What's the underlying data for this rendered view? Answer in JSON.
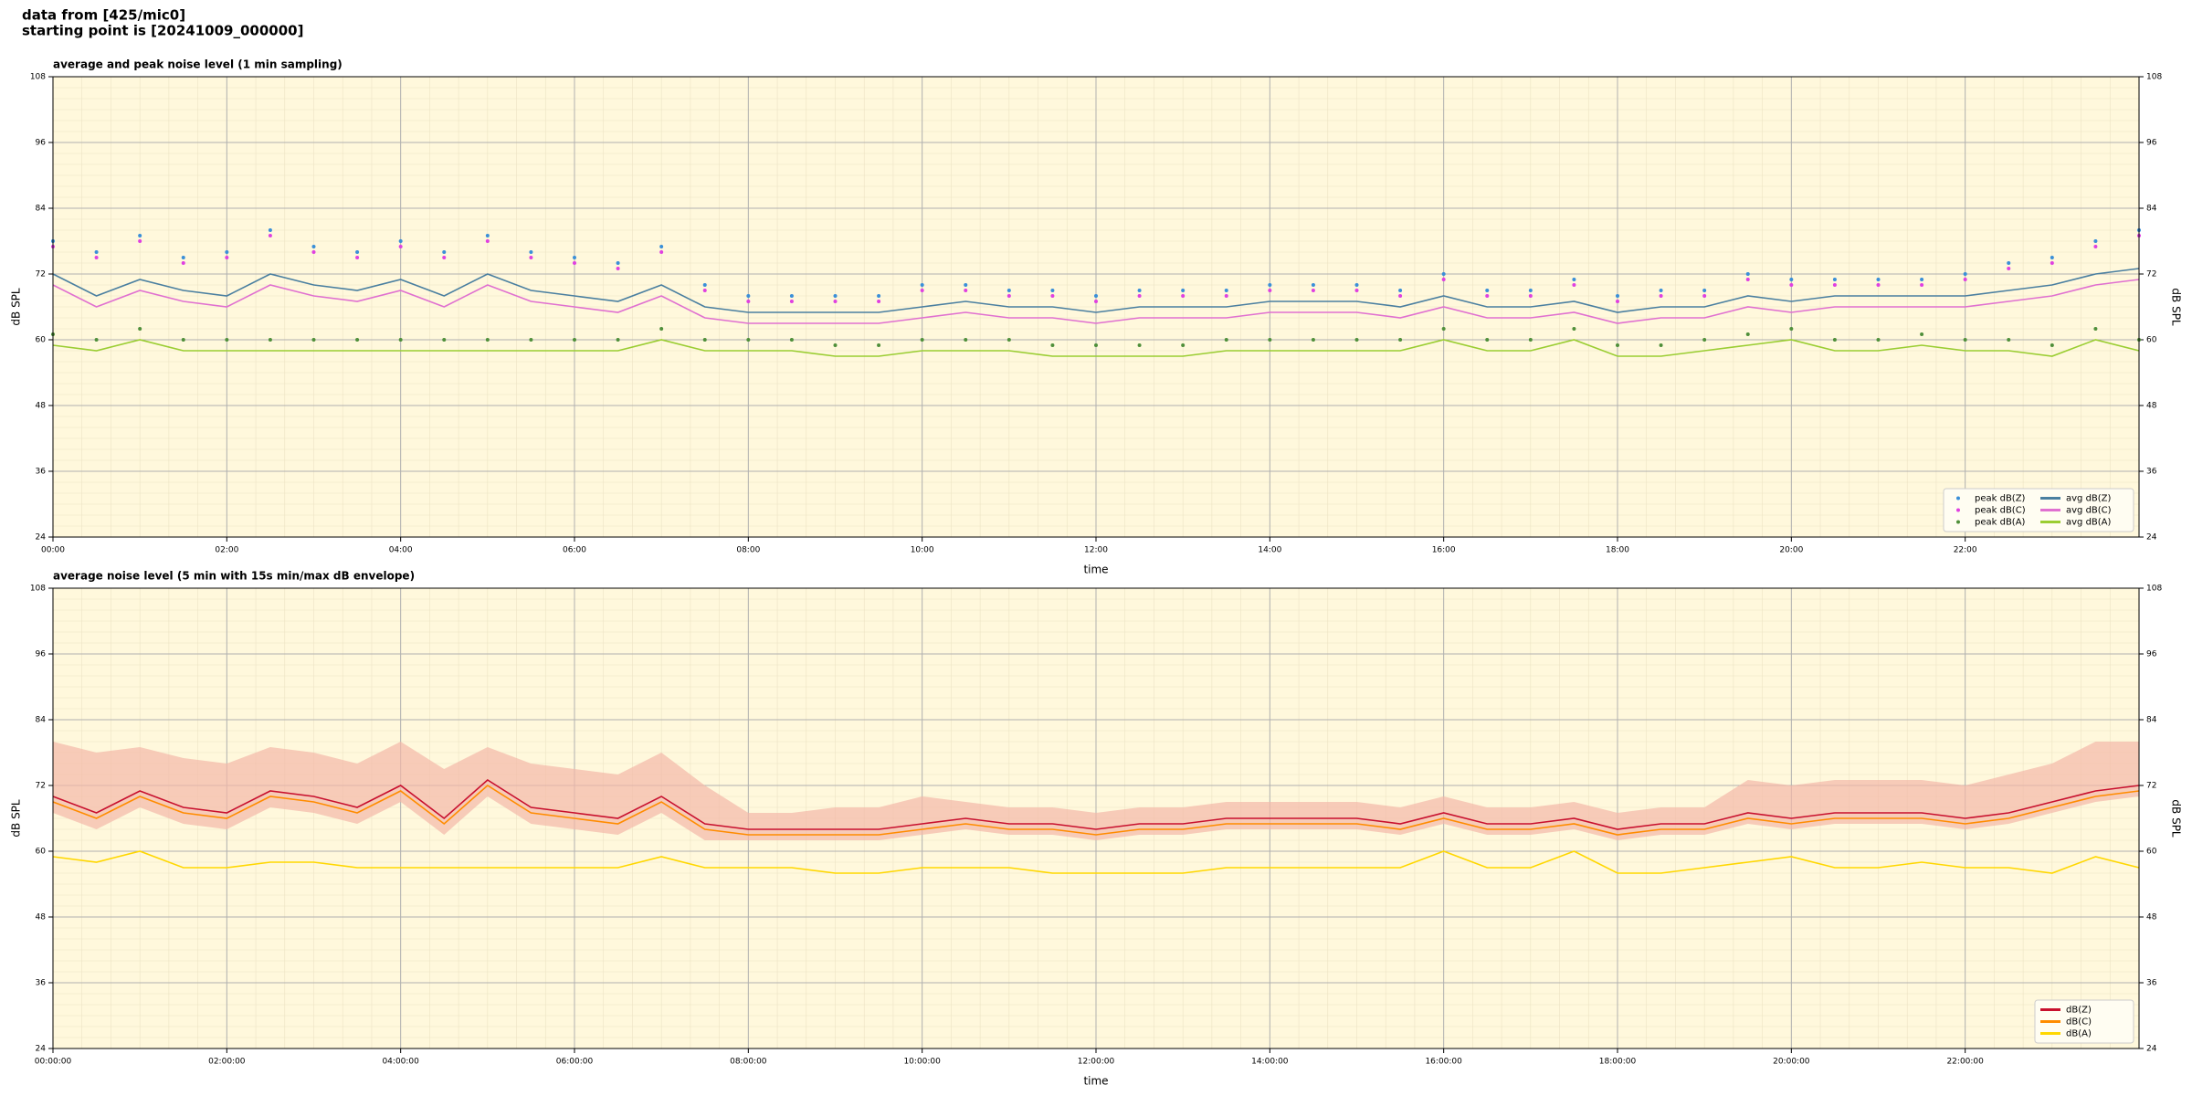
{
  "header": [
    "data from [425/mic0]",
    "starting point is [20241009_000000]"
  ],
  "chart_data": [
    {
      "type": "line",
      "title": "average and peak noise level (1 min sampling)",
      "xlabel": "time",
      "ylabel": "dB SPL",
      "xlim": [
        0,
        1440
      ],
      "ylim": [
        24,
        108
      ],
      "yticks": [
        24,
        36,
        48,
        60,
        72,
        84,
        96,
        108
      ],
      "grid": true,
      "mirror_y": true,
      "legend": "lower right",
      "legend_columns": 2,
      "xticks": [
        {
          "value": 0,
          "label": "00:00"
        },
        {
          "value": 120,
          "label": "02:00"
        },
        {
          "value": 240,
          "label": "04:00"
        },
        {
          "value": 360,
          "label": "06:00"
        },
        {
          "value": 480,
          "label": "08:00"
        },
        {
          "value": 600,
          "label": "10:00"
        },
        {
          "value": 720,
          "label": "12:00"
        },
        {
          "value": 840,
          "label": "14:00"
        },
        {
          "value": 960,
          "label": "16:00"
        },
        {
          "value": 1080,
          "label": "18:00"
        },
        {
          "value": 1200,
          "label": "20:00"
        },
        {
          "value": 1320,
          "label": "22:00"
        }
      ],
      "x": [
        0,
        30,
        60,
        90,
        120,
        150,
        180,
        210,
        240,
        270,
        300,
        330,
        360,
        390,
        420,
        450,
        480,
        510,
        540,
        570,
        600,
        630,
        660,
        690,
        720,
        750,
        780,
        810,
        840,
        870,
        900,
        930,
        960,
        990,
        1020,
        1050,
        1080,
        1110,
        1140,
        1170,
        1200,
        1230,
        1260,
        1290,
        1320,
        1350,
        1380,
        1410,
        1440
      ],
      "series": [
        {
          "name": "peak dB(Z)",
          "color": "#3a8fd8",
          "marker": "dot",
          "values": [
            78,
            76,
            79,
            75,
            76,
            80,
            77,
            76,
            78,
            76,
            79,
            76,
            75,
            74,
            77,
            70,
            68,
            68,
            68,
            68,
            70,
            70,
            69,
            69,
            68,
            69,
            69,
            69,
            70,
            70,
            70,
            69,
            72,
            69,
            69,
            71,
            68,
            69,
            69,
            72,
            71,
            71,
            71,
            71,
            72,
            74,
            75,
            78,
            80
          ]
        },
        {
          "name": "peak dB(C)",
          "color": "#e040e0",
          "marker": "dot",
          "values": [
            77,
            75,
            78,
            74,
            75,
            79,
            76,
            75,
            77,
            75,
            78,
            75,
            74,
            73,
            76,
            69,
            67,
            67,
            67,
            67,
            69,
            69,
            68,
            68,
            67,
            68,
            68,
            68,
            69,
            69,
            69,
            68,
            71,
            68,
            68,
            70,
            67,
            68,
            68,
            71,
            70,
            70,
            70,
            70,
            71,
            73,
            74,
            77,
            79
          ]
        },
        {
          "name": "peak dB(A)",
          "color": "#4f8f3a",
          "marker": "dot",
          "values": [
            61,
            60,
            62,
            60,
            60,
            60,
            60,
            60,
            60,
            60,
            60,
            60,
            60,
            60,
            62,
            60,
            60,
            60,
            59,
            59,
            60,
            60,
            60,
            59,
            59,
            59,
            59,
            60,
            60,
            60,
            60,
            60,
            62,
            60,
            60,
            62,
            59,
            59,
            60,
            61,
            62,
            60,
            60,
            61,
            60,
            60,
            59,
            62,
            60
          ]
        },
        {
          "name": "avg dB(Z)",
          "color": "#4a7fa0",
          "values": [
            72,
            68,
            71,
            69,
            68,
            72,
            70,
            69,
            71,
            68,
            72,
            69,
            68,
            67,
            70,
            66,
            65,
            65,
            65,
            65,
            66,
            67,
            66,
            66,
            65,
            66,
            66,
            66,
            67,
            67,
            67,
            66,
            68,
            66,
            66,
            67,
            65,
            66,
            66,
            68,
            67,
            68,
            68,
            68,
            68,
            69,
            70,
            72,
            73
          ]
        },
        {
          "name": "avg dB(C)",
          "color": "#e070d0",
          "values": [
            70,
            66,
            69,
            67,
            66,
            70,
            68,
            67,
            69,
            66,
            70,
            67,
            66,
            65,
            68,
            64,
            63,
            63,
            63,
            63,
            64,
            65,
            64,
            64,
            63,
            64,
            64,
            64,
            65,
            65,
            65,
            64,
            66,
            64,
            64,
            65,
            63,
            64,
            64,
            66,
            65,
            66,
            66,
            66,
            66,
            67,
            68,
            70,
            71
          ]
        },
        {
          "name": "avg dB(A)",
          "color": "#9acd32",
          "values": [
            59,
            58,
            60,
            58,
            58,
            58,
            58,
            58,
            58,
            58,
            58,
            58,
            58,
            58,
            60,
            58,
            58,
            58,
            57,
            57,
            58,
            58,
            58,
            57,
            57,
            57,
            57,
            58,
            58,
            58,
            58,
            58,
            60,
            58,
            58,
            60,
            57,
            57,
            58,
            59,
            60,
            58,
            58,
            59,
            58,
            58,
            57,
            60,
            58
          ]
        }
      ]
    },
    {
      "type": "line",
      "title": "average noise level (5 min with 15s min/max dB envelope)",
      "xlabel": "time",
      "ylabel": "dB SPL",
      "xlim": [
        0,
        1440
      ],
      "ylim": [
        24,
        108
      ],
      "yticks": [
        24,
        36,
        48,
        60,
        72,
        84,
        96,
        108
      ],
      "grid": true,
      "mirror_y": true,
      "legend": "lower right",
      "legend_columns": 1,
      "xticks": [
        {
          "value": 0,
          "label": "00:00:00"
        },
        {
          "value": 120,
          "label": "02:00:00"
        },
        {
          "value": 240,
          "label": "04:00:00"
        },
        {
          "value": 360,
          "label": "06:00:00"
        },
        {
          "value": 480,
          "label": "08:00:00"
        },
        {
          "value": 600,
          "label": "10:00:00"
        },
        {
          "value": 720,
          "label": "12:00:00"
        },
        {
          "value": 840,
          "label": "14:00:00"
        },
        {
          "value": 960,
          "label": "16:00:00"
        },
        {
          "value": 1080,
          "label": "18:00:00"
        },
        {
          "value": 1200,
          "label": "20:00:00"
        },
        {
          "value": 1320,
          "label": "22:00:00"
        }
      ],
      "x": [
        0,
        30,
        60,
        90,
        120,
        150,
        180,
        210,
        240,
        270,
        300,
        330,
        360,
        390,
        420,
        450,
        480,
        510,
        540,
        570,
        600,
        630,
        660,
        690,
        720,
        750,
        780,
        810,
        840,
        870,
        900,
        930,
        960,
        990,
        1020,
        1050,
        1080,
        1110,
        1140,
        1170,
        1200,
        1230,
        1260,
        1290,
        1320,
        1350,
        1380,
        1410,
        1440
      ],
      "envelope": {
        "color": "#f4b8a8",
        "upper": [
          80,
          78,
          79,
          77,
          76,
          79,
          78,
          76,
          80,
          75,
          79,
          76,
          75,
          74,
          78,
          72,
          67,
          67,
          68,
          68,
          70,
          69,
          68,
          68,
          67,
          68,
          68,
          69,
          69,
          69,
          69,
          68,
          70,
          68,
          68,
          69,
          67,
          68,
          68,
          73,
          72,
          73,
          73,
          73,
          72,
          74,
          76,
          80,
          80
        ],
        "lower": [
          67,
          64,
          68,
          65,
          64,
          68,
          67,
          65,
          69,
          63,
          70,
          65,
          64,
          63,
          67,
          62,
          62,
          62,
          62,
          62,
          63,
          64,
          63,
          63,
          62,
          63,
          63,
          64,
          64,
          64,
          64,
          63,
          65,
          63,
          63,
          64,
          62,
          63,
          63,
          65,
          64,
          65,
          65,
          65,
          64,
          65,
          67,
          69,
          70
        ]
      },
      "series": [
        {
          "name": "dB(Z)",
          "color": "#c8102e",
          "values": [
            70,
            67,
            71,
            68,
            67,
            71,
            70,
            68,
            72,
            66,
            73,
            68,
            67,
            66,
            70,
            65,
            64,
            64,
            64,
            64,
            65,
            66,
            65,
            65,
            64,
            65,
            65,
            66,
            66,
            66,
            66,
            65,
            67,
            65,
            65,
            66,
            64,
            65,
            65,
            67,
            66,
            67,
            67,
            67,
            66,
            67,
            69,
            71,
            72
          ]
        },
        {
          "name": "dB(C)",
          "color": "#ff8c00",
          "values": [
            69,
            66,
            70,
            67,
            66,
            70,
            69,
            67,
            71,
            65,
            72,
            67,
            66,
            65,
            69,
            64,
            63,
            63,
            63,
            63,
            64,
            65,
            64,
            64,
            63,
            64,
            64,
            65,
            65,
            65,
            65,
            64,
            66,
            64,
            64,
            65,
            63,
            64,
            64,
            66,
            65,
            66,
            66,
            66,
            65,
            66,
            68,
            70,
            71
          ]
        },
        {
          "name": "dB(A)",
          "color": "#ffd700",
          "values": [
            59,
            58,
            60,
            57,
            57,
            58,
            58,
            57,
            57,
            57,
            57,
            57,
            57,
            57,
            59,
            57,
            57,
            57,
            56,
            56,
            57,
            57,
            57,
            56,
            56,
            56,
            56,
            57,
            57,
            57,
            57,
            57,
            60,
            57,
            57,
            60,
            56,
            56,
            57,
            58,
            59,
            57,
            57,
            58,
            57,
            57,
            56,
            59,
            57
          ]
        }
      ]
    }
  ]
}
